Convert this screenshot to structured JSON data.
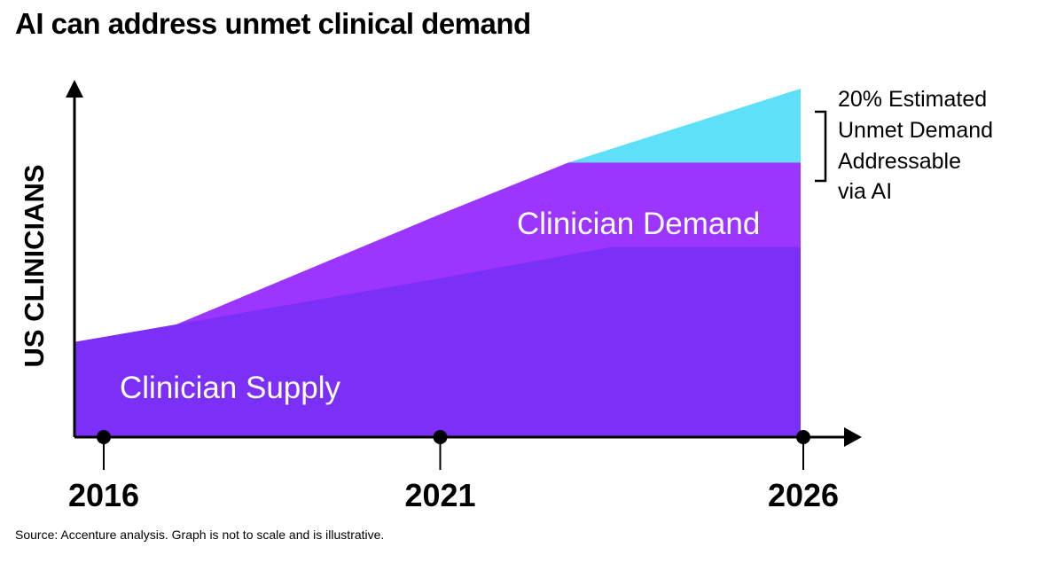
{
  "title": "AI can address unmet clinical demand",
  "source": "Source: Accenture analysis. Graph is not to scale and is illustrative.",
  "colors": {
    "supply": "#7b2ff7",
    "demand": "#9b35ff",
    "gap": "#5ee0fb",
    "axis": "#000000",
    "label_text": "#ffffff"
  },
  "chart_data": {
    "type": "area",
    "title": "AI can address unmet clinical demand",
    "xlabel": "",
    "ylabel": "US CLINICIANS",
    "xlim": [
      2016,
      2026
    ],
    "ylim": [
      0,
      100
    ],
    "x_ticks": [
      2016,
      2021,
      2026
    ],
    "x_tick_labels": [
      "2016",
      "2021",
      "2026"
    ],
    "series": [
      {
        "name": "Clinician Supply",
        "label": "Clinician Supply",
        "points": [
          [
            2016,
            27
          ],
          [
            2017.4,
            32
          ],
          [
            2021,
            45
          ],
          [
            2023.4,
            54
          ],
          [
            2026,
            54
          ]
        ]
      },
      {
        "name": "Clinician Demand",
        "label": "Clinician Demand",
        "points": [
          [
            2016,
            27
          ],
          [
            2017.4,
            32
          ],
          [
            2021,
            63
          ],
          [
            2022.8,
            78
          ],
          [
            2026,
            78
          ]
        ]
      },
      {
        "name": "Estimated Unmet Demand Addressable via AI",
        "points": [
          [
            2022.8,
            78
          ],
          [
            2026,
            99
          ]
        ],
        "base": 78
      }
    ],
    "annotation": {
      "lines": [
        "20% Estimated",
        "Unmet Demand",
        "Addressable",
        "via AI"
      ]
    }
  }
}
